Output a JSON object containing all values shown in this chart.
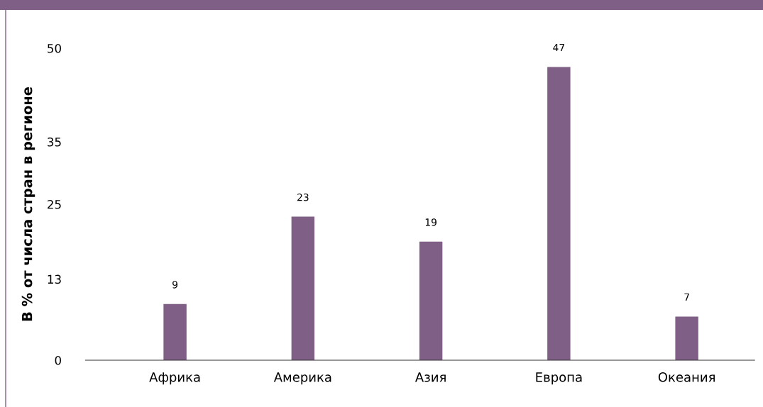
{
  "chart_data": {
    "type": "bar",
    "ylabel": "В % от числа стран в регионе",
    "categories": [
      "Африка",
      "Америка",
      "Азия",
      "Европа",
      "Океания"
    ],
    "values": [
      9,
      23,
      19,
      47,
      7
    ],
    "color": "#7f5f85",
    "ylim": [
      0,
      50
    ],
    "yticks": [
      0,
      13,
      25,
      35,
      50
    ],
    "data_labels": true,
    "grid": false,
    "legend": false
  }
}
